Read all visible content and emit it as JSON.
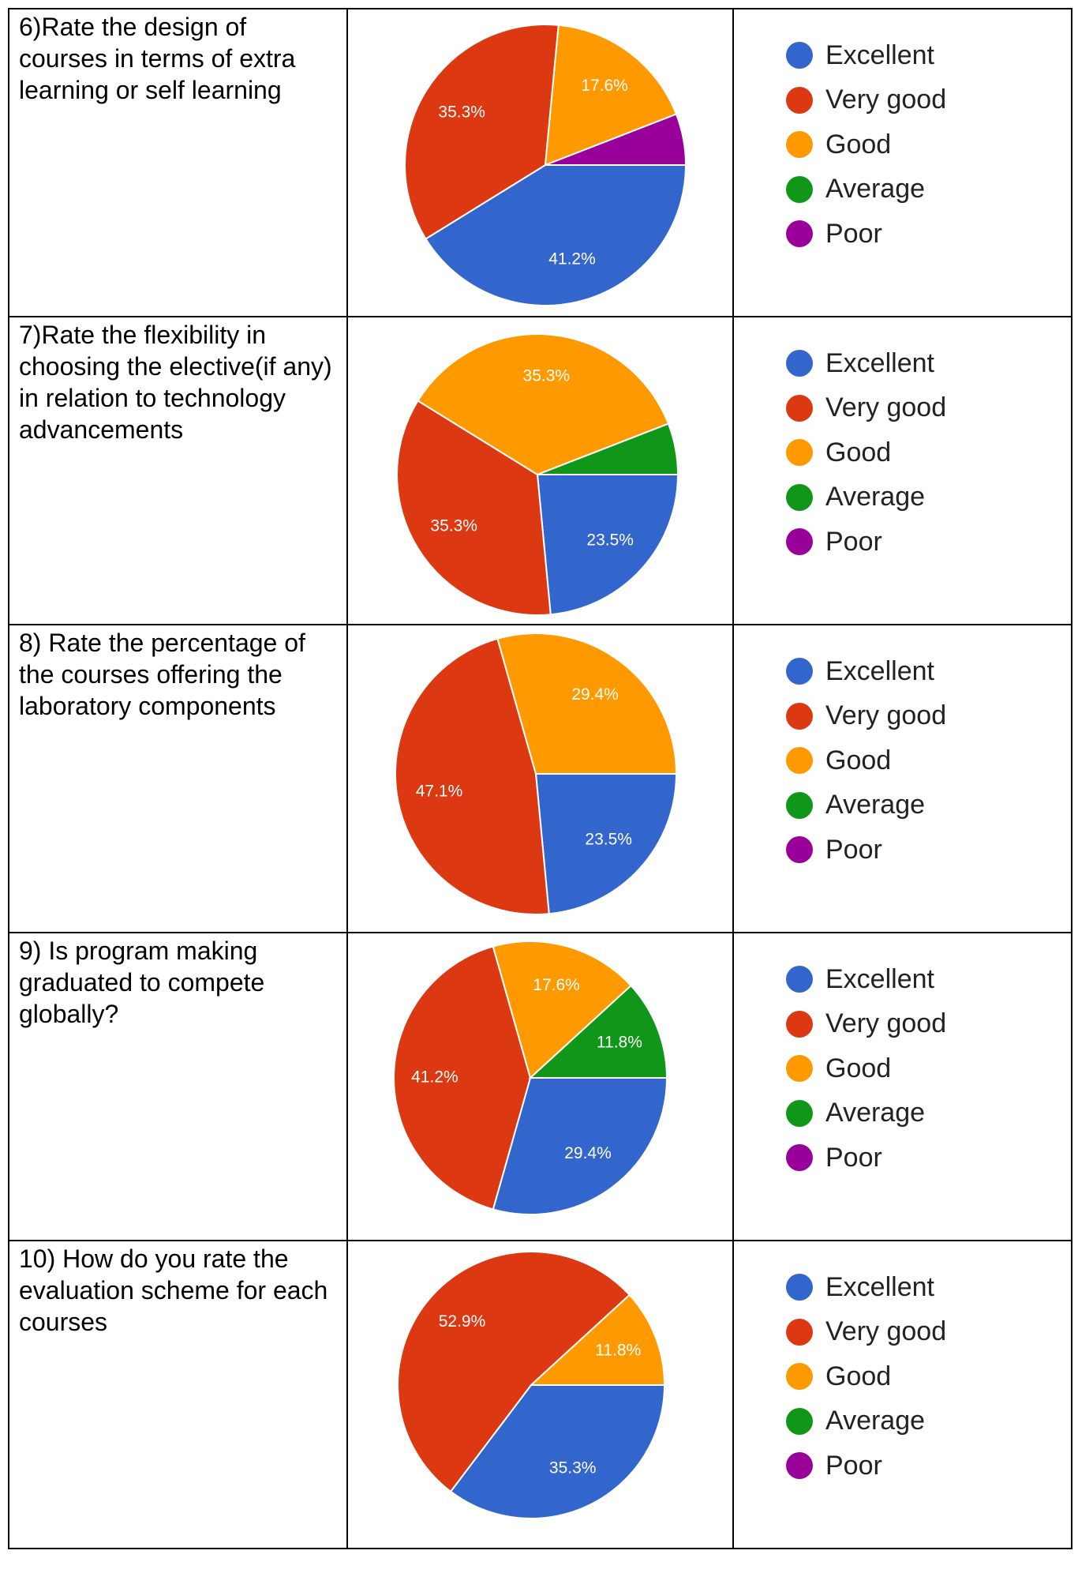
{
  "legend_labels": [
    "Excellent",
    "Very good",
    "Good",
    "Average",
    "Poor"
  ],
  "colors": {
    "Excellent": "#3366cc",
    "Very good": "#dc3912",
    "Good": "#ff9900",
    "Average": "#109618",
    "Poor": "#990099"
  },
  "questions": [
    "6)Rate the design of courses in terms of extra learning or self learning",
    "7)Rate the flexibility in choosing the elective(if any) in relation to technology advancements",
    "8) Rate the percentage of the courses offering the laboratory components",
    "9) Is program making graduated to compete globally?",
    "10) How do you rate the evaluation scheme for each courses"
  ],
  "chart_data": [
    {
      "type": "pie",
      "categories": [
        "Excellent",
        "Very good",
        "Good",
        "Average",
        "Poor"
      ],
      "values": [
        41.2,
        35.3,
        17.6,
        0,
        5.9
      ],
      "labels": [
        "41.2%",
        "35.3%",
        "17.6%",
        "",
        ""
      ]
    },
    {
      "type": "pie",
      "categories": [
        "Excellent",
        "Very good",
        "Good",
        "Average",
        "Poor"
      ],
      "values": [
        23.5,
        35.3,
        35.3,
        5.9,
        0
      ],
      "labels": [
        "23.5%",
        "35.3%",
        "35.3%",
        "",
        ""
      ]
    },
    {
      "type": "pie",
      "categories": [
        "Excellent",
        "Very good",
        "Good",
        "Average",
        "Poor"
      ],
      "values": [
        23.5,
        47.1,
        29.4,
        0,
        0
      ],
      "labels": [
        "23.5%",
        "47.1%",
        "29.4%",
        "",
        ""
      ]
    },
    {
      "type": "pie",
      "categories": [
        "Excellent",
        "Very good",
        "Good",
        "Average",
        "Poor"
      ],
      "values": [
        29.4,
        41.2,
        17.6,
        11.8,
        0
      ],
      "labels": [
        "29.4%",
        "41.2%",
        "17.6%",
        "11.8%",
        ""
      ]
    },
    {
      "type": "pie",
      "categories": [
        "Excellent",
        "Very good",
        "Good",
        "Average",
        "Poor"
      ],
      "values": [
        35.3,
        52.9,
        11.8,
        0,
        0
      ],
      "labels": [
        "35.3%",
        "52.9%",
        "11.8%",
        "",
        ""
      ]
    }
  ]
}
